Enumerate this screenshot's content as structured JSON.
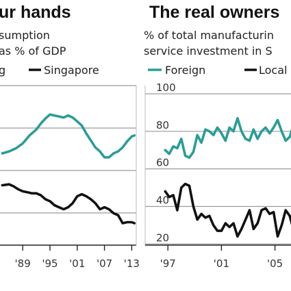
{
  "colors": {
    "foreign": "#2a9d96",
    "local": "#111111",
    "grid": "#9a9a9a",
    "axis": "#222222"
  },
  "chart_data": [
    {
      "type": "line",
      "title": "ur hands",
      "subtitle_lines": [
        "sumption",
        "as % of GDP"
      ],
      "legend_entries": [
        "g",
        "Singapore"
      ],
      "xtick_labels": [
        "'89",
        "'95",
        "'01",
        "'07",
        "'13"
      ],
      "xtick_values": [
        1989,
        1995,
        2001,
        2007,
        2013
      ],
      "xlim": [
        1984,
        2014
      ],
      "series": [
        {
          "name": "g",
          "color": "#2a9d96",
          "x": [
            1984.5,
            1986,
            1987.5,
            1989,
            1990.5,
            1992,
            1993,
            1994,
            1995,
            1996,
            1997,
            1998,
            1999,
            2000,
            2001,
            2002,
            2003,
            2004,
            2005,
            2006,
            2007,
            2008,
            2009,
            2010,
            2011,
            2012,
            2013,
            2013.6
          ],
          "values": [
            61,
            62,
            63.5,
            66,
            70,
            73,
            76,
            78.5,
            80.5,
            80,
            79.5,
            79,
            80,
            79,
            77,
            75,
            71,
            67.5,
            64,
            62,
            59,
            59,
            61,
            62,
            64,
            67,
            69.5,
            70
          ]
        },
        {
          "name": "Singapore",
          "color": "#111111",
          "x": [
            1984.5,
            1986,
            1987,
            1988,
            1989,
            1990,
            1991,
            1992,
            1993,
            1994,
            1995,
            1996,
            1997,
            1998,
            1999,
            2000,
            2001,
            2002,
            2003,
            2004,
            2005,
            2006,
            2007,
            2008,
            2009,
            2010,
            2011,
            2012,
            2013,
            2013.6
          ],
          "values": [
            45,
            45.5,
            44.5,
            43,
            42,
            41.5,
            41,
            41,
            40,
            38,
            37,
            35,
            34,
            33,
            34,
            36,
            39.5,
            40.5,
            39.5,
            38,
            36,
            33,
            34,
            33,
            31,
            30,
            26,
            26.5,
            26.5,
            26
          ]
        }
      ]
    },
    {
      "type": "line",
      "title": "The real owners",
      "subtitle_lines": [
        "% of total manufacturin",
        "service investment in S"
      ],
      "legend_entries": [
        "Foreign",
        "Local"
      ],
      "ytick_labels": [
        "100",
        "80",
        "60",
        "40",
        "20"
      ],
      "ytick_values": [
        100,
        80,
        60,
        40,
        20
      ],
      "ylim": [
        15,
        100
      ],
      "xtick_labels": [
        "'97",
        "'01",
        "'05"
      ],
      "xtick_values": [
        1997,
        2001,
        2005
      ],
      "xlim": [
        1995.3,
        2008.5
      ],
      "series": [
        {
          "name": "Foreign",
          "color": "#2a9d96",
          "x": [
            1996.8,
            1997.1,
            1997.4,
            1997.7,
            1998,
            1998.3,
            1998.6,
            1998.9,
            1999.2,
            1999.5,
            1999.8,
            2000.1,
            2000.4,
            2000.7,
            2001,
            2001.3,
            2001.6,
            2001.9,
            2002.2,
            2002.5,
            2002.8,
            2003.1,
            2003.4,
            2003.7,
            2004,
            2004.3,
            2004.6,
            2004.9,
            2005.2,
            2005.5,
            2005.8,
            2006.1,
            2006.4,
            2006.7,
            2007
          ],
          "values": [
            70,
            68,
            72,
            71,
            76,
            67,
            66,
            69,
            78,
            74,
            81,
            80,
            78,
            82,
            79,
            75,
            82,
            80,
            87,
            80,
            76,
            75,
            81,
            76,
            80,
            82,
            79,
            82,
            86,
            80,
            75,
            77,
            84,
            86,
            82
          ]
        },
        {
          "name": "Local",
          "color": "#111111",
          "x": [
            1996.8,
            1997.1,
            1997.4,
            1997.7,
            1998,
            1998.3,
            1998.6,
            1998.9,
            1999.2,
            1999.5,
            1999.8,
            2000.1,
            2000.4,
            2000.7,
            2001,
            2001.3,
            2001.6,
            2001.9,
            2002.2,
            2002.5,
            2002.8,
            2003.1,
            2003.4,
            2003.7,
            2004,
            2004.3,
            2004.6,
            2004.9,
            2005.2,
            2005.5,
            2005.8,
            2006.1,
            2006.4,
            2006.7,
            2007
          ],
          "values": [
            48,
            45,
            46,
            38,
            50,
            52,
            51,
            40,
            33,
            36,
            34,
            35,
            30,
            27,
            27,
            31,
            29,
            31,
            24,
            28,
            33,
            38,
            28,
            31,
            38,
            39,
            36,
            37,
            24,
            30,
            38,
            35,
            27,
            24,
            28
          ]
        }
      ]
    }
  ]
}
